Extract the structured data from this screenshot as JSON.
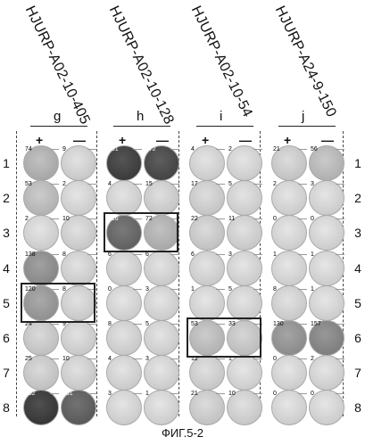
{
  "groups": [
    {
      "peptide": "HJURP-A02-10-405",
      "label": "g"
    },
    {
      "peptide": "HJURP-A02-10-128",
      "label": "h"
    },
    {
      "peptide": "HJURP-A02-10-54",
      "label": "i"
    },
    {
      "peptide": "HJURP-A24-9-150",
      "label": "j"
    }
  ],
  "signs": [
    "+",
    "—"
  ],
  "rows": [
    "1",
    "2",
    "3",
    "4",
    "5",
    "6",
    "7",
    "8"
  ],
  "counts": [
    [
      "74",
      "9",
      "291",
      "272",
      "4",
      "2",
      "21",
      "56"
    ],
    [
      "53",
      "2",
      "4",
      "15",
      "17",
      "5",
      "2",
      "3"
    ],
    [
      "2",
      "10",
      "216",
      "72",
      "22",
      "11",
      "0",
      "0"
    ],
    [
      "138",
      "8",
      "6",
      "6",
      "6",
      "3",
      "1",
      "1"
    ],
    [
      "120",
      "8",
      "0",
      "3",
      "1",
      "5",
      "8",
      "1"
    ],
    [
      "24",
      "9",
      "8",
      "5",
      "53",
      "33",
      "130",
      "157"
    ],
    [
      "25",
      "10",
      "4",
      "3",
      "12",
      "1",
      "0",
      "2"
    ],
    [
      "352",
      "231",
      "3",
      "1",
      "21",
      "10",
      "0",
      "0"
    ]
  ],
  "caption": "ФИГ.5-2"
}
